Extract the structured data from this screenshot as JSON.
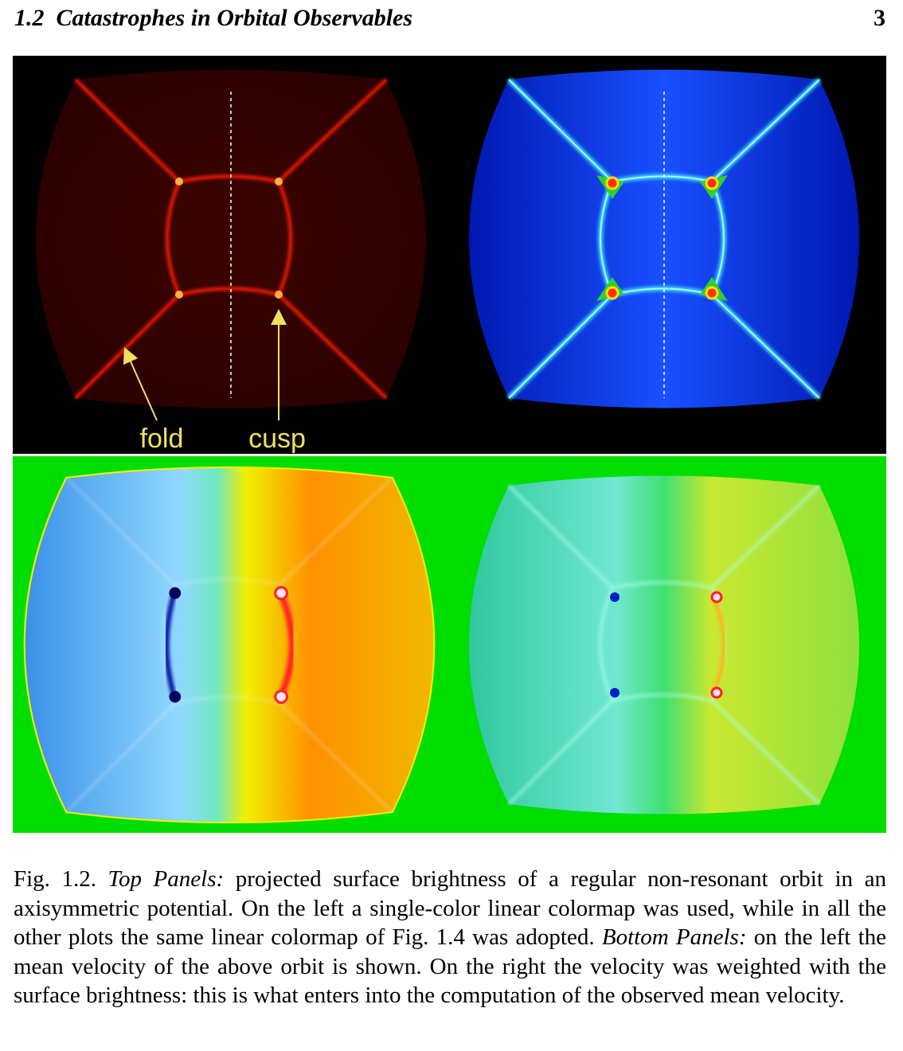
{
  "header": {
    "title": "1.2  Catastrophes in Orbital Observables",
    "page_number": "3"
  },
  "figure": {
    "labels": [
      "fold",
      "cusp"
    ]
  },
  "caption": {
    "label": "Fig. 1.2.",
    "segments": [
      {
        "text": "Top Panels:",
        "italic": true
      },
      {
        "text": "projected surface brightness of a regular non-resonant orbit in an axisymmetric potential. On the left a single-color linear colormap was used, while in all the other plots the same linear colormap of Fig. 1.4 was adopted.",
        "italic": false
      },
      {
        "text": "Bottom Panels:",
        "italic": true
      },
      {
        "text": "on the left the mean velocity of the above orbit is shown. On the right the velocity was weighted with the surface brightness: this is what enters into the computation of the observed mean velocity.",
        "italic": false
      }
    ]
  }
}
